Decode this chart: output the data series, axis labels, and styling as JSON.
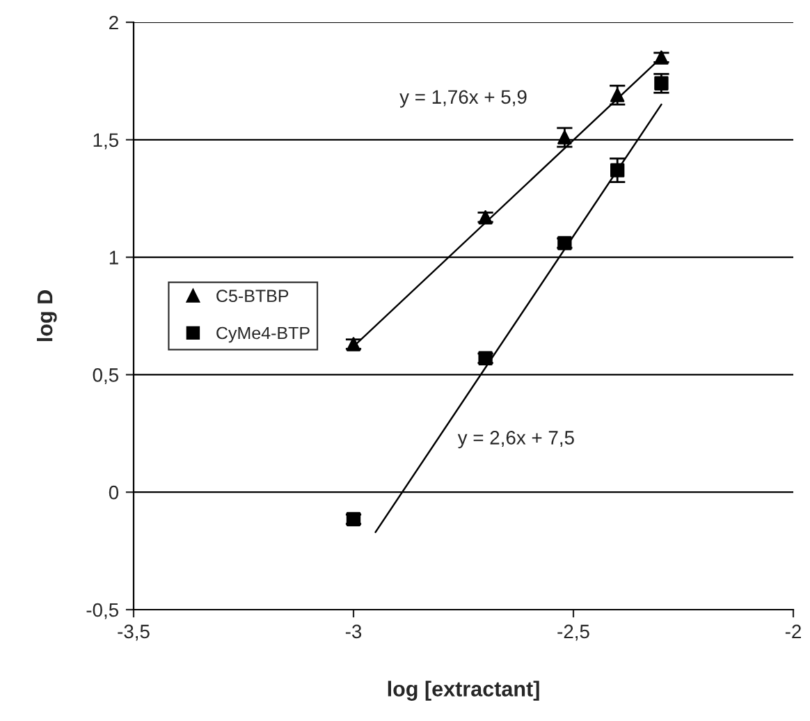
{
  "chart_data": {
    "type": "scatter",
    "xlabel": "log [extractant]",
    "ylabel": "log D",
    "xlim": [
      -3.5,
      -2
    ],
    "ylim": [
      -0.5,
      2
    ],
    "xticks": [
      {
        "value": -3.5,
        "label": "-3,5"
      },
      {
        "value": -3,
        "label": "-3"
      },
      {
        "value": -2.5,
        "label": "-2,5"
      },
      {
        "value": -2,
        "label": "-2"
      }
    ],
    "yticks": [
      {
        "value": -0.5,
        "label": "-0,5"
      },
      {
        "value": 0,
        "label": "0"
      },
      {
        "value": 0.5,
        "label": "0,5"
      },
      {
        "value": 1,
        "label": "1"
      },
      {
        "value": 1.5,
        "label": "1,5"
      },
      {
        "value": 2,
        "label": "2"
      }
    ],
    "grid": "y",
    "legend": "left",
    "series": [
      {
        "name": "C5-BTBP",
        "marker": "triangle",
        "color": "#000000",
        "x": [
          -3,
          -2.7,
          -2.52,
          -2.4,
          -2.3
        ],
        "values": [
          0.63,
          1.17,
          1.51,
          1.69,
          1.85
        ],
        "errors": [
          0.02,
          0.02,
          0.04,
          0.04,
          0.02
        ]
      },
      {
        "name": "CyMe4-BTP",
        "marker": "square",
        "color": "#000000",
        "x": [
          -3,
          -2.7,
          -2.52,
          -2.4,
          -2.3
        ],
        "values": [
          -0.115,
          0.57,
          1.06,
          1.37,
          1.74
        ],
        "errors": [
          0.02,
          0.02,
          0.02,
          0.05,
          0.04
        ]
      },
      {
        "type": "line",
        "color": "#000000",
        "x": [
          -3,
          -2.3
        ],
        "values": [
          0.62,
          1.85
        ]
      },
      {
        "type": "line",
        "color": "#000000",
        "x": [
          -2.95,
          -2.3
        ],
        "values": [
          -0.17,
          1.65
        ]
      }
    ],
    "annotations": [
      "y = 1,76x + 5,9",
      "y = 2,6x + 7,5"
    ]
  }
}
